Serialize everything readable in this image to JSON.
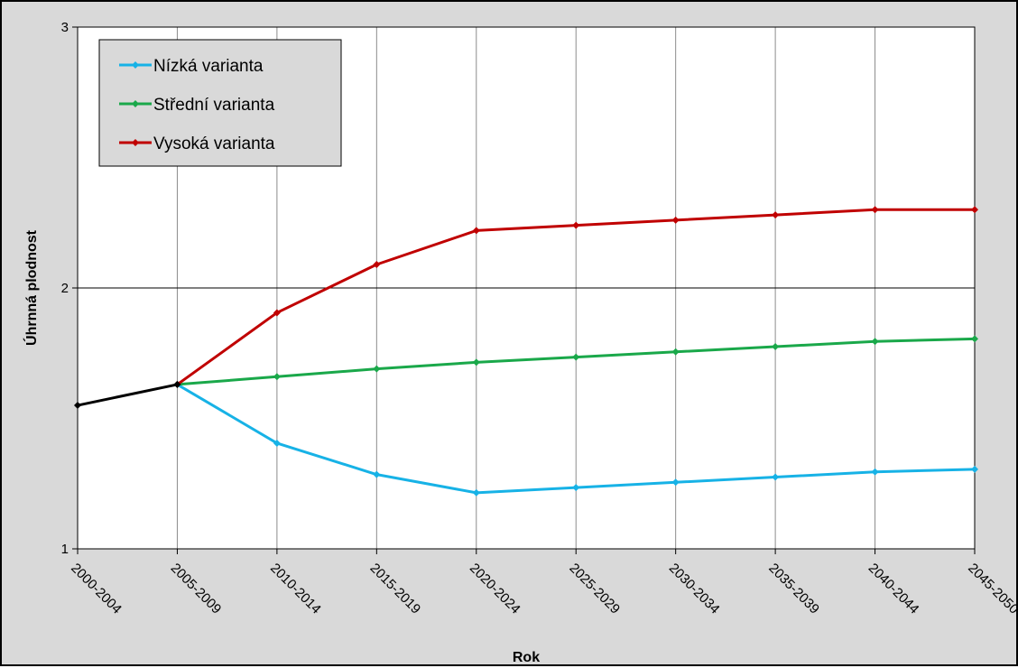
{
  "chart_data": {
    "type": "line",
    "title": "",
    "xlabel": "Rok",
    "ylabel": "Úhrnná plodnost",
    "ylim": [
      1,
      3
    ],
    "yticks": [
      1,
      2,
      3
    ],
    "grid": true,
    "legend_position": "top-left",
    "categories": [
      "2000-2004",
      "2005-2009",
      "2010-2014",
      "2015-2019",
      "2020-2024",
      "2025-2029",
      "2030-2034",
      "2035-2039",
      "2040-2044",
      "2045-2050"
    ],
    "series": [
      {
        "name": "Nízká varianta",
        "color": "#17b2e6",
        "values": [
          null,
          1.63,
          1.405,
          1.285,
          1.215,
          1.235,
          1.255,
          1.275,
          1.295,
          1.305
        ]
      },
      {
        "name": "Střední varianta",
        "color": "#1aa84a",
        "values": [
          null,
          1.63,
          1.66,
          1.69,
          1.715,
          1.735,
          1.755,
          1.775,
          1.795,
          1.805
        ]
      },
      {
        "name": "Vysoká varianta",
        "color": "#c00000",
        "values": [
          null,
          1.63,
          1.905,
          2.09,
          2.22,
          2.24,
          2.26,
          2.28,
          2.3,
          2.3
        ]
      },
      {
        "name": "",
        "color": "#000000",
        "values": [
          1.55,
          1.63,
          null,
          null,
          null,
          null,
          null,
          null,
          null,
          null
        ]
      }
    ]
  }
}
